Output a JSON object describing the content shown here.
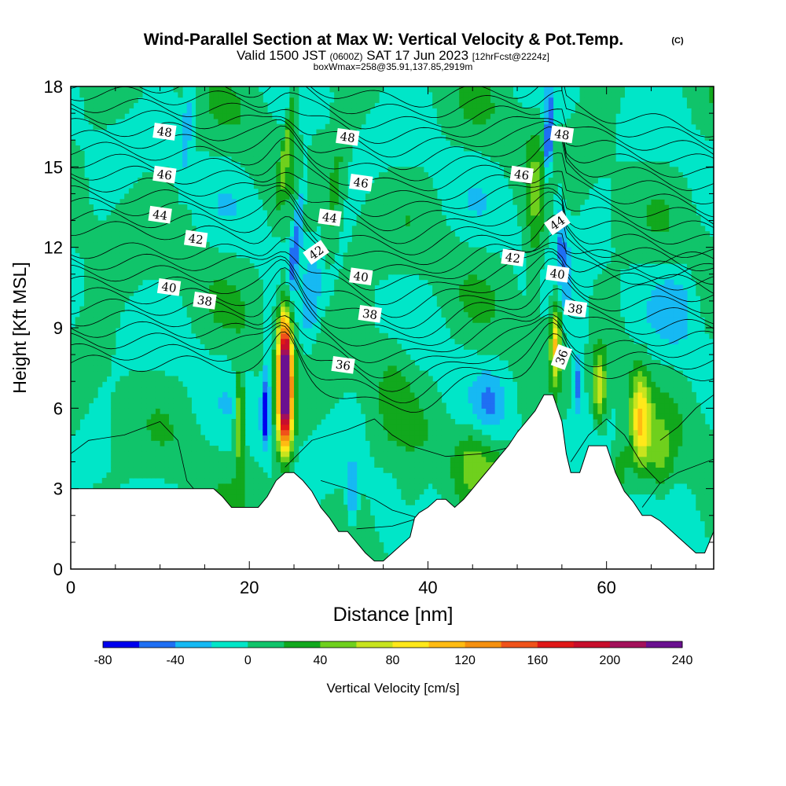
{
  "chart_data": {
    "type": "heatmap",
    "title": "Wind-Parallel Section at Max W: Vertical Velocity & Pot.Temp.",
    "title_mark": "(C)",
    "subtitle": {
      "valid": "Valid 1500 JST",
      "utc": "(0600Z)",
      "date": "SAT 17 Jun 2023",
      "fcst": "[12hrFcst@2224z]"
    },
    "box_info": "boxWmax=258@35.91,137.85,2919m",
    "xlabel": "Distance [nm]",
    "ylabel": "Height [Kft MSL]",
    "xlim": [
      0,
      72
    ],
    "ylim": [
      0,
      18
    ],
    "x_ticks": [
      0,
      20,
      40,
      60
    ],
    "y_ticks": [
      0,
      3,
      6,
      9,
      12,
      15,
      18
    ],
    "colorbar": {
      "label": "Vertical Velocity [cm/s]",
      "min": -80,
      "max": 240,
      "step": 20,
      "tick_labels": [
        "-80",
        "-40",
        "0",
        "40",
        "80",
        "120",
        "160",
        "200",
        "240"
      ],
      "colors": [
        "#0000ee",
        "#1f6ff3",
        "#16b9f3",
        "#00e6c8",
        "#10c46a",
        "#11a81d",
        "#6fd01d",
        "#c8e41e",
        "#ffe81a",
        "#ffbb12",
        "#f5900f",
        "#f0521a",
        "#e01818",
        "#c80e2c",
        "#a3105a",
        "#6a1090"
      ]
    },
    "theta_contours": {
      "units": "deg C potential temperature",
      "levels": [
        36,
        38,
        40,
        42,
        44,
        46,
        48
      ],
      "labels": [
        {
          "text": "48",
          "x": 10.5,
          "y": 16.3
        },
        {
          "text": "48",
          "x": 31.0,
          "y": 16.1
        },
        {
          "text": "48",
          "x": 55.0,
          "y": 16.2
        },
        {
          "text": "46",
          "x": 10.5,
          "y": 14.7
        },
        {
          "text": "46",
          "x": 32.5,
          "y": 14.4
        },
        {
          "text": "46",
          "x": 50.5,
          "y": 14.7
        },
        {
          "text": "44",
          "x": 10.0,
          "y": 13.2
        },
        {
          "text": "44",
          "x": 29.0,
          "y": 13.1
        },
        {
          "text": "44",
          "x": 54.5,
          "y": 12.9
        },
        {
          "text": "42",
          "x": 14.0,
          "y": 12.3
        },
        {
          "text": "42",
          "x": 27.5,
          "y": 11.8
        },
        {
          "text": "42",
          "x": 49.5,
          "y": 11.6
        },
        {
          "text": "40",
          "x": 11.0,
          "y": 10.5
        },
        {
          "text": "40",
          "x": 32.5,
          "y": 10.9
        },
        {
          "text": "40",
          "x": 54.5,
          "y": 11.0
        },
        {
          "text": "38",
          "x": 15.0,
          "y": 10.0
        },
        {
          "text": "38",
          "x": 33.5,
          "y": 9.5
        },
        {
          "text": "38",
          "x": 56.5,
          "y": 9.7
        },
        {
          "text": "36",
          "x": 30.5,
          "y": 7.6
        },
        {
          "text": "36",
          "x": 55.0,
          "y": 7.9
        }
      ]
    },
    "terrain_kft": [
      [
        0,
        3.0
      ],
      [
        16,
        3.0
      ],
      [
        17,
        2.7
      ],
      [
        18,
        2.3
      ],
      [
        20,
        2.3
      ],
      [
        21,
        2.3
      ],
      [
        22,
        2.7
      ],
      [
        23,
        3.3
      ],
      [
        24,
        3.6
      ],
      [
        25,
        3.6
      ],
      [
        26,
        3.3
      ],
      [
        27,
        2.9
      ],
      [
        28,
        2.3
      ],
      [
        29,
        1.9
      ],
      [
        30,
        1.4
      ],
      [
        31,
        1.4
      ],
      [
        32,
        1.0
      ],
      [
        33,
        0.6
      ],
      [
        34,
        0.3
      ],
      [
        35,
        0.3
      ],
      [
        36,
        0.6
      ],
      [
        37,
        0.9
      ],
      [
        38,
        1.2
      ],
      [
        38.5,
        1.9
      ],
      [
        39,
        2.1
      ],
      [
        40,
        2.3
      ],
      [
        41,
        2.6
      ],
      [
        42,
        2.6
      ],
      [
        43,
        2.3
      ],
      [
        44,
        2.6
      ],
      [
        45,
        3.0
      ],
      [
        46,
        3.4
      ],
      [
        47,
        3.8
      ],
      [
        48,
        4.2
      ],
      [
        49,
        4.6
      ],
      [
        50,
        5.1
      ],
      [
        51,
        5.5
      ],
      [
        52,
        5.9
      ],
      [
        53,
        6.5
      ],
      [
        54,
        6.5
      ],
      [
        55,
        5.5
      ],
      [
        55.5,
        4.3
      ],
      [
        56,
        3.6
      ],
      [
        57,
        3.6
      ],
      [
        58,
        4.6
      ],
      [
        59,
        4.6
      ],
      [
        60,
        4.6
      ],
      [
        61,
        3.6
      ],
      [
        62,
        2.9
      ],
      [
        63,
        2.5
      ],
      [
        64,
        2.0
      ],
      [
        65,
        2.0
      ],
      [
        66,
        1.8
      ],
      [
        67,
        1.5
      ],
      [
        68,
        1.2
      ],
      [
        69,
        0.9
      ],
      [
        70,
        0.6
      ],
      [
        71,
        0.6
      ],
      [
        72,
        1.4
      ]
    ]
  }
}
